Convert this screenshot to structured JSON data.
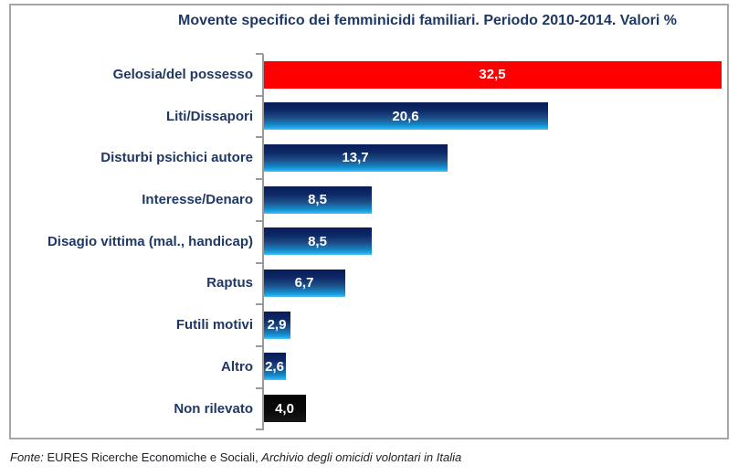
{
  "chart_data": {
    "type": "bar",
    "orientation": "horizontal",
    "title": "Movente specifico dei femminicidi familiari. Periodo 2010-2014. Valori %",
    "categories": [
      "Gelosia/del possesso",
      "Liti/Dissapori",
      "Disturbi psichici autore",
      "Interesse/Denaro",
      "Disagio vittima (mal., handicap)",
      "Raptus",
      "Futili motivi",
      "Altro",
      "Non rilevato"
    ],
    "values": [
      32.5,
      20.6,
      13.7,
      8.5,
      8.5,
      6.7,
      2.9,
      2.6,
      4.0
    ],
    "value_labels": [
      "32,5",
      "20,6",
      "13,7",
      "8,5",
      "8,5",
      "6,7",
      "2,9",
      "2,6",
      "4,0"
    ],
    "bar_styles": [
      "red",
      "blue",
      "blue",
      "blue",
      "blue",
      "blue",
      "blue",
      "blue",
      "black"
    ],
    "xlabel": "",
    "ylabel": "",
    "xlim": [
      0,
      32.5
    ],
    "grid": false,
    "legend": null,
    "data_labels_position": "inside-center"
  },
  "footer": {
    "fonte_label": "Fonte:",
    "source_text": " EURES Ricerche Economiche e Sociali, ",
    "publication_title": "Archivio degli omicidi volontari in Italia"
  },
  "colors": {
    "title_text": "#1F3864",
    "category_text": "#1F3864",
    "value_text": "#FFFFFF",
    "bar_red": "#FE0000",
    "bar_blue_top": "#081C56",
    "bar_blue_bottom": "#55C2F0",
    "bar_black": "#0A0A0A",
    "axis": "#9A9A9A",
    "frame_border": "#A6A6A6",
    "background": "#FFFFFF"
  }
}
